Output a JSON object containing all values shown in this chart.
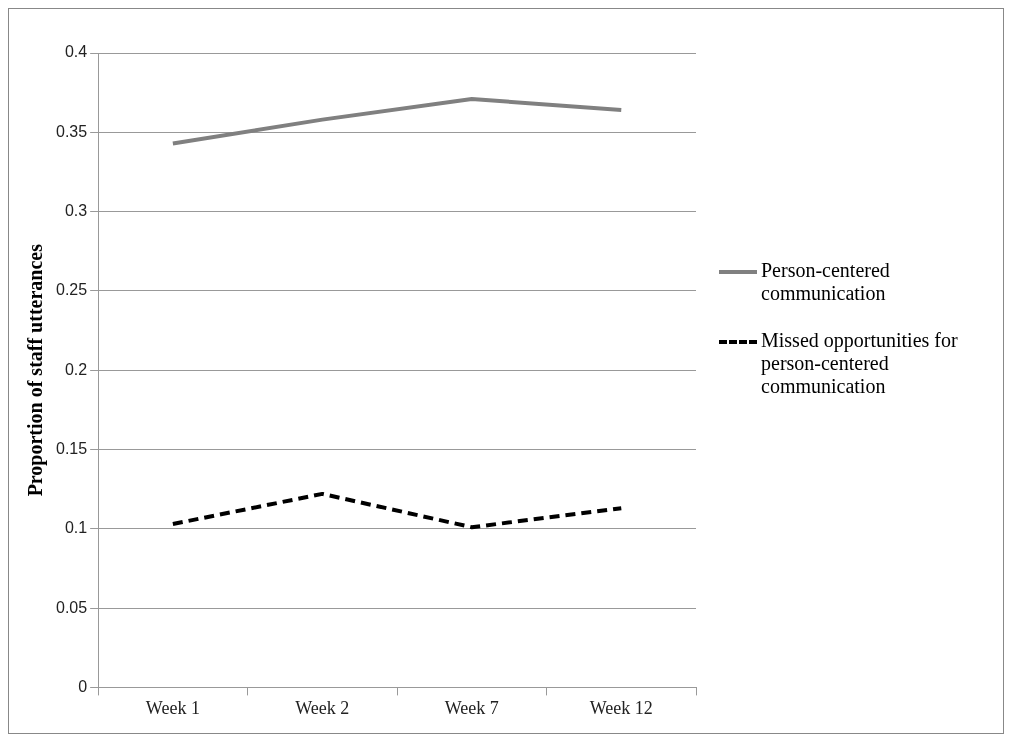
{
  "chart_data": {
    "type": "line",
    "ylabel": "Proportion of staff utterances",
    "categories": [
      "Week 1",
      "Week 2",
      "Week 7",
      "Week 12"
    ],
    "series": [
      {
        "name": "Person-centered communication",
        "color": "#808080",
        "values": [
          0.343,
          0.358,
          0.371,
          0.364
        ],
        "line_style": "solid"
      },
      {
        "name": "Missed opportunities for person-centered communication",
        "color": "#000000",
        "values": [
          0.103,
          0.122,
          0.101,
          0.113
        ],
        "line_style": "dashed"
      }
    ],
    "ylim": [
      0,
      0.4
    ],
    "yticks": [
      0,
      0.05,
      0.1,
      0.15,
      0.2,
      0.25,
      0.3,
      0.35,
      0.4
    ],
    "grid": "y",
    "legend": "right",
    "marker": "none"
  }
}
